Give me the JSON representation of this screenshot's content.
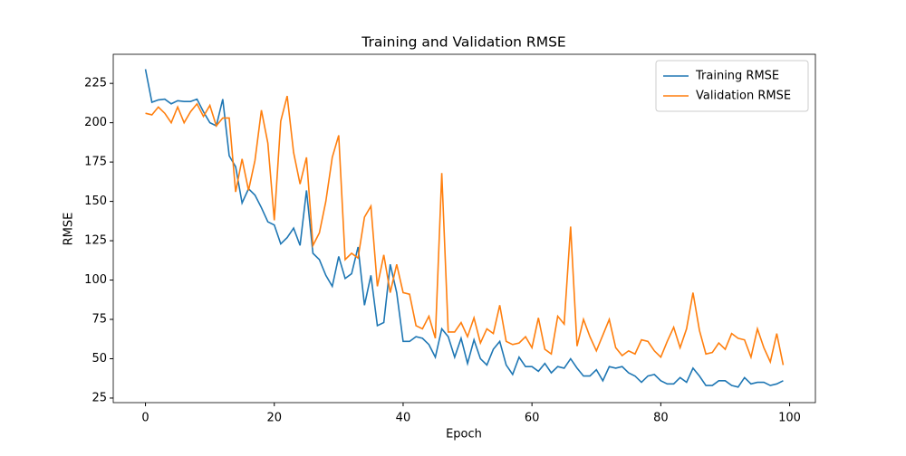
{
  "chart_data": {
    "type": "line",
    "title": "Training and Validation RMSE",
    "x_label": "Epoch",
    "y_label": "RMSE",
    "x": [
      0,
      1,
      2,
      3,
      4,
      5,
      6,
      7,
      8,
      9,
      10,
      11,
      12,
      13,
      14,
      15,
      16,
      17,
      18,
      19,
      20,
      21,
      22,
      23,
      24,
      25,
      26,
      27,
      28,
      29,
      30,
      31,
      32,
      33,
      34,
      35,
      36,
      37,
      38,
      39,
      40,
      41,
      42,
      43,
      44,
      45,
      46,
      47,
      48,
      49,
      50,
      51,
      52,
      53,
      54,
      55,
      56,
      57,
      58,
      59,
      60,
      61,
      62,
      63,
      64,
      65,
      66,
      67,
      68,
      69,
      70,
      71,
      72,
      73,
      74,
      75,
      76,
      77,
      78,
      79,
      80,
      81,
      82,
      83,
      84,
      85,
      86,
      87,
      88,
      89,
      90,
      91,
      92,
      93,
      94,
      95,
      96,
      97,
      98,
      99
    ],
    "series": [
      {
        "name": "Training RMSE",
        "color": "#1f77b4",
        "values": [
          234,
          213,
          214.5,
          215,
          212,
          214,
          213.5,
          213.5,
          215,
          207,
          200,
          198,
          215,
          179,
          172,
          149,
          158,
          154,
          146,
          137,
          135,
          123,
          127,
          133,
          122,
          157,
          117,
          113,
          103,
          96,
          115,
          101,
          104,
          121,
          84,
          103,
          71,
          73,
          110,
          92,
          61,
          61,
          64,
          63,
          59,
          51,
          69,
          64,
          51,
          63,
          47,
          62,
          50,
          46,
          56,
          61,
          46,
          40,
          51,
          45,
          45,
          42,
          47,
          41,
          45,
          44,
          50,
          44,
          39,
          39,
          43,
          36,
          45,
          44,
          45,
          41,
          39,
          35,
          39,
          40,
          36,
          34,
          34,
          38,
          35,
          44,
          39,
          33,
          33,
          36,
          36,
          33,
          32,
          38,
          34,
          35,
          35,
          33,
          34,
          36
        ]
      },
      {
        "name": "Validation RMSE",
        "color": "#ff7f0e",
        "values": [
          206,
          205,
          210,
          206,
          200,
          210,
          200,
          207,
          212,
          204,
          211,
          198,
          203,
          203,
          156,
          177,
          157,
          176,
          208,
          187,
          138,
          201,
          217,
          181,
          161,
          178,
          122,
          130,
          150,
          178,
          192,
          113,
          117,
          114,
          140,
          147,
          96,
          116,
          92,
          110,
          92,
          91,
          71,
          69,
          77,
          63,
          168,
          67,
          67,
          73,
          64,
          76,
          60,
          69,
          66,
          84,
          61,
          59,
          60,
          64,
          57,
          76,
          56,
          53,
          77,
          72,
          134,
          58,
          75,
          64,
          55,
          65,
          75,
          57,
          52,
          55,
          53,
          62,
          61,
          55,
          51,
          61,
          70,
          57,
          69,
          92,
          68,
          53,
          54,
          60,
          56,
          66,
          63,
          62,
          51,
          69,
          57,
          48,
          66,
          46
        ]
      }
    ],
    "xlim": [
      -5,
      104
    ],
    "xticks": [
      0,
      20,
      40,
      60,
      80,
      100
    ],
    "ylim": [
      22.1,
      243.5
    ],
    "yticks": [
      25,
      50,
      75,
      100,
      125,
      150,
      175,
      200,
      225
    ],
    "legend": "upper-right"
  }
}
